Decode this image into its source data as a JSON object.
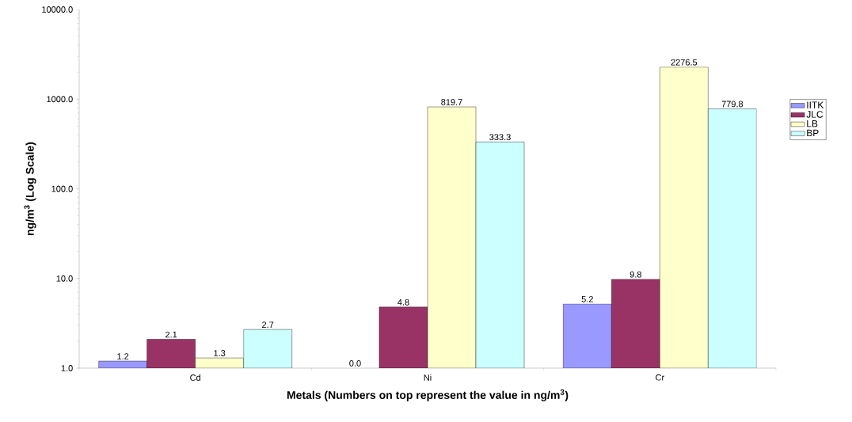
{
  "chart_data": {
    "type": "bar",
    "xlabel": "Metals (Numbers on top represent the value in ng/m$^{3}$)",
    "ylabel": "ng/m$^{3}$ (Log Scale)",
    "categories": [
      "Cd",
      "Ni",
      "Cr"
    ],
    "series": [
      {
        "name": "IITK",
        "color": "#9999ff",
        "values": [
          1.2,
          null,
          5.2
        ],
        "value_labels": [
          "1.2",
          "0.0",
          "5.2"
        ]
      },
      {
        "name": "JLC",
        "color": "#993366",
        "values": [
          2.1,
          4.8,
          9.8
        ],
        "value_labels": [
          "2.1",
          "4.8",
          "9.8"
        ]
      },
      {
        "name": "LB",
        "color": "#ffffcc",
        "values": [
          1.3,
          819.7,
          2276.5
        ],
        "value_labels": [
          "1.3",
          "819.7",
          "2276.5"
        ]
      },
      {
        "name": "BP",
        "color": "#ccffff",
        "values": [
          2.7,
          333.3,
          779.8
        ],
        "value_labels": [
          "2.7",
          "333.3",
          "779.8"
        ]
      }
    ],
    "log": "y",
    "ylim": [
      1,
      10000
    ],
    "yticks": [
      {
        "value": 1,
        "label": "1.0"
      },
      {
        "value": 10,
        "label": "10.0"
      },
      {
        "value": 100,
        "label": "100.0"
      },
      {
        "value": 1000,
        "label": "1000.0"
      },
      {
        "value": 10000,
        "label": "10000.0"
      }
    ],
    "grid": false,
    "legend": "right"
  }
}
